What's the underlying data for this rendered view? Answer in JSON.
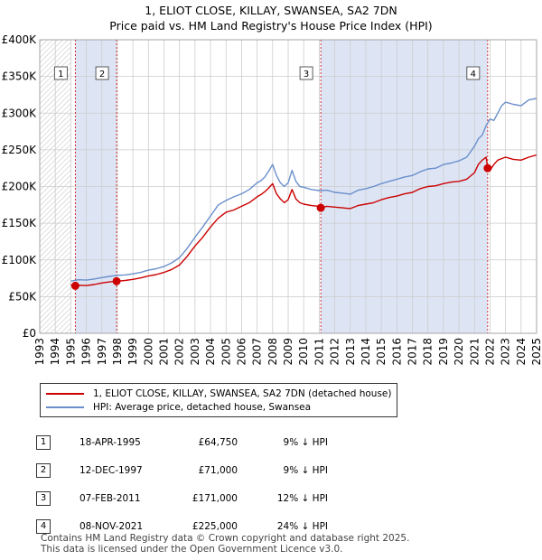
{
  "title_line1": "1, ELIOT CLOSE, KILLAY, SWANSEA, SA2 7DN",
  "title_line2": "Price paid vs. HM Land Registry's House Price Index (HPI)",
  "colors": {
    "property": "#cc0000",
    "hpi": "#6a8fcc",
    "shade": "#dde5f5",
    "grid": "#cccccc"
  },
  "legend": {
    "property": "1, ELIOT CLOSE, KILLAY, SWANSEA, SA2 7DN (detached house)",
    "hpi": "HPI: Average price, detached house, Swansea"
  },
  "transactions": [
    {
      "num": "1",
      "date": "18-APR-1995",
      "price": "£64,750",
      "hpi": "9% ↓ HPI"
    },
    {
      "num": "2",
      "date": "12-DEC-1997",
      "price": "£71,000",
      "hpi": "9% ↓ HPI"
    },
    {
      "num": "3",
      "date": "07-FEB-2011",
      "price": "£171,000",
      "hpi": "12% ↓ HPI"
    },
    {
      "num": "4",
      "date": "08-NOV-2021",
      "price": "£225,000",
      "hpi": "24% ↓ HPI"
    }
  ],
  "footer_line1": "Contains HM Land Registry data © Crown copyright and database right 2025.",
  "footer_line2": "This data is licensed under the Open Government Licence v3.0.",
  "chart_data": {
    "type": "line",
    "title": "1, ELIOT CLOSE, KILLAY, SWANSEA, SA2 7DN",
    "subtitle": "Price paid vs. HM Land Registry's House Price Index (HPI)",
    "xlabel": "",
    "ylabel": "",
    "xlim": [
      1993,
      2025
    ],
    "ylim": [
      0,
      400000
    ],
    "x_ticks": [
      1993,
      1994,
      1995,
      1996,
      1997,
      1998,
      1999,
      2000,
      2001,
      2002,
      2003,
      2004,
      2005,
      2006,
      2007,
      2008,
      2009,
      2010,
      2011,
      2012,
      2013,
      2014,
      2015,
      2016,
      2017,
      2018,
      2019,
      2020,
      2021,
      2022,
      2023,
      2024,
      2025
    ],
    "y_ticks": [
      0,
      50000,
      100000,
      150000,
      200000,
      250000,
      300000,
      350000,
      400000
    ],
    "y_tick_labels": [
      "£0",
      "£50K",
      "£100K",
      "£150K",
      "£200K",
      "£250K",
      "£300K",
      "£350K",
      "£400K"
    ],
    "grid": true,
    "hatched_until": 1995.0,
    "shaded_spans": [
      [
        1995.29,
        1997.95
      ],
      [
        2011.1,
        2021.85
      ]
    ],
    "series": [
      {
        "name": "HPI: Average price, detached house, Swansea",
        "x": [
          1995.0,
          1995.5,
          1996,
          1996.5,
          1997,
          1997.5,
          1998,
          1998.5,
          1999,
          1999.5,
          2000,
          2000.5,
          2001,
          2001.5,
          2002,
          2002.5,
          2003,
          2003.5,
          2004,
          2004.5,
          2005,
          2005.5,
          2006,
          2006.5,
          2007,
          2007.25,
          2007.5,
          2007.75,
          2008,
          2008.25,
          2008.5,
          2008.75,
          2009,
          2009.25,
          2009.5,
          2009.75,
          2010,
          2010.5,
          2011,
          2011.5,
          2012,
          2012.5,
          2013,
          2013.5,
          2014,
          2014.5,
          2015,
          2015.5,
          2016,
          2016.5,
          2017,
          2017.5,
          2018,
          2018.5,
          2019,
          2019.5,
          2020,
          2020.5,
          2021,
          2021.25,
          2021.5,
          2021.75,
          2022,
          2022.25,
          2022.5,
          2022.75,
          2023,
          2023.5,
          2024,
          2024.5,
          2025
        ],
        "y": [
          71000,
          73000,
          72500,
          74000,
          76000,
          77500,
          79000,
          79500,
          81000,
          83000,
          86000,
          88000,
          91000,
          96000,
          103000,
          116000,
          131000,
          145000,
          160000,
          175000,
          181000,
          186000,
          190000,
          196000,
          205000,
          208000,
          213000,
          221000,
          230000,
          215000,
          205000,
          200000,
          205000,
          222000,
          207000,
          200000,
          199000,
          196000,
          194500,
          195000,
          192000,
          191000,
          189500,
          195000,
          197000,
          200000,
          204000,
          207000,
          210000,
          213000,
          215000,
          220000,
          224000,
          225000,
          230000,
          232000,
          235000,
          240000,
          255000,
          265000,
          270000,
          283000,
          292000,
          290000,
          300000,
          310000,
          315000,
          312000,
          310000,
          318000,
          320000
        ]
      },
      {
        "name": "1, ELIOT CLOSE, KILLAY, SWANSEA, SA2 7DN (detached house)",
        "x": [
          1995.0,
          1995.29,
          1995.5,
          1996,
          1996.5,
          1997,
          1997.5,
          1997.95,
          1998.5,
          1999,
          1999.5,
          2000,
          2000.5,
          2001,
          2001.5,
          2002,
          2002.5,
          2003,
          2003.5,
          2004,
          2004.5,
          2005,
          2005.5,
          2006,
          2006.5,
          2007,
          2007.25,
          2007.5,
          2007.75,
          2008,
          2008.25,
          2008.5,
          2008.75,
          2009,
          2009.25,
          2009.5,
          2009.75,
          2010,
          2010.5,
          2011,
          2011.1,
          2011.5,
          2012,
          2012.5,
          2013,
          2013.5,
          2014,
          2014.5,
          2015,
          2015.5,
          2016,
          2016.5,
          2017,
          2017.5,
          2018,
          2018.5,
          2019,
          2019.5,
          2020,
          2020.5,
          2021,
          2021.25,
          2021.5,
          2021.75,
          2021.85,
          2022,
          2022.25,
          2022.5,
          2022.75,
          2023,
          2023.5,
          2024,
          2024.5,
          2025
        ],
        "y": [
          66000,
          64750,
          65500,
          65000,
          66500,
          68500,
          70000,
          71000,
          72000,
          73500,
          75500,
          78000,
          80000,
          83000,
          87000,
          93000,
          105000,
          119000,
          131000,
          145000,
          157000,
          165000,
          168000,
          173000,
          178000,
          186000,
          189000,
          193000,
          198000,
          204000,
          190000,
          183000,
          178000,
          182000,
          196000,
          183000,
          178000,
          176000,
          174000,
          173000,
          171000,
          173000,
          172000,
          171000,
          170000,
          174000,
          176000,
          178000,
          182000,
          185000,
          187000,
          190000,
          192000,
          197000,
          200000,
          201000,
          204000,
          206000,
          207000,
          210000,
          219000,
          230000,
          236000,
          240000,
          225000,
          222000,
          230000,
          236000,
          238000,
          240000,
          237000,
          236000,
          240000,
          243000
        ]
      }
    ],
    "sale_points": [
      {
        "label": "1",
        "x": 1995.29,
        "y": 64750
      },
      {
        "label": "2",
        "x": 1997.95,
        "y": 71000
      },
      {
        "label": "3",
        "x": 2011.1,
        "y": 171000
      },
      {
        "label": "4",
        "x": 2021.85,
        "y": 225000
      }
    ]
  }
}
